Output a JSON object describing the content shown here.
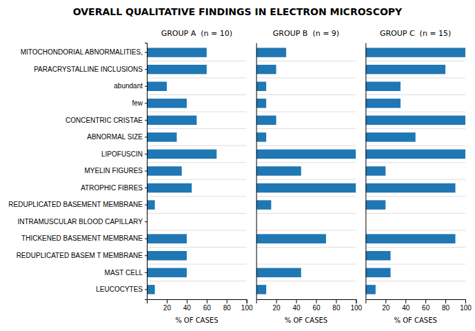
{
  "chart_data": {
    "type": "bar",
    "orientation": "horizontal",
    "title": "OVERALL QUALITATIVE FINDINGS IN ELECTRON MICROSCOPY",
    "xlabel": "% OF CASES",
    "categories": [
      "MITOCHONDORIAL ABNORMALITIES,",
      "PARACRYSTALLINE INCLUSIONS",
      "abundant",
      "few",
      "CONCENTRIC CRISTAE",
      "ABNORMAL SIZE",
      "LIPOFUSCIN",
      "MYELIN FIGURES",
      "ATROPHIC FIBRES",
      "REDUPLICATED BASEMENT MEMBRANE",
      "INTRAMUSCULAR BLOOD CAPILLARY",
      "THICKENED BASEMENT MEMBRANE",
      "REDUPLICATED BASEM T MEMBRANE",
      "MAST CELL",
      "LEUCOCYTES"
    ],
    "series": [
      {
        "name": "GROUP A  (n = 10)",
        "values": [
          60,
          60,
          20,
          40,
          50,
          30,
          70,
          35,
          45,
          8,
          0,
          40,
          40,
          40,
          8
        ]
      },
      {
        "name": "GROUP B  (n = 9)",
        "values": [
          30,
          20,
          10,
          10,
          20,
          10,
          100,
          45,
          100,
          15,
          0,
          70,
          0,
          45,
          10
        ]
      },
      {
        "name": "GROUP C  (n = 15)",
        "values": [
          100,
          80,
          35,
          35,
          100,
          50,
          100,
          20,
          90,
          20,
          0,
          90,
          25,
          25,
          10
        ]
      }
    ],
    "xlim": [
      0,
      100
    ],
    "xticks": [
      20,
      40,
      60,
      80,
      100
    ],
    "grid": true
  }
}
